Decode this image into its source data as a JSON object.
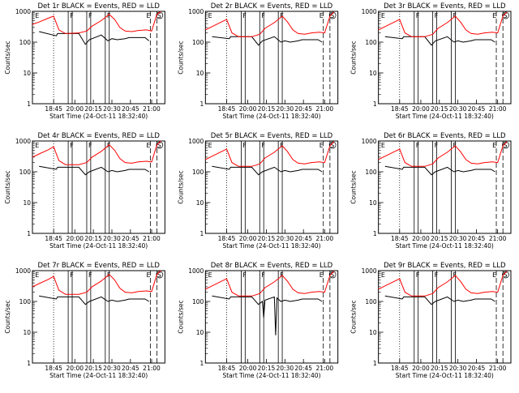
{
  "layout": {
    "rows": 3,
    "cols": 3
  },
  "common": {
    "xlabel": "Start Time (24-Oct-11 18:32:40)",
    "ylabel": "Counts/sec",
    "y_scale": "log",
    "ylim": [
      1,
      1000
    ],
    "y_ticks": [
      1,
      10,
      100,
      1000
    ],
    "x_tick_labels": [
      "18:45",
      "20:00",
      "20:15",
      "20:30",
      "20:45",
      "21:00"
    ],
    "x_tick_fracs": [
      0.16,
      0.32,
      0.46,
      0.6,
      0.74,
      0.9
    ],
    "colors": {
      "events": "#000000",
      "lld": "#ff0000"
    },
    "markers": {
      "E": [
        0.02,
        0.86
      ],
      "F": [
        0.27,
        0.41,
        0.55
      ],
      "S": 0.96
    }
  },
  "chart_data": [
    {
      "title": "Det 1r BLACK = Events, RED = LLD",
      "type": "line",
      "series": [
        {
          "name": "Events",
          "x": [
            0.05,
            0.18,
            0.19,
            0.22,
            0.35,
            0.4,
            0.43,
            0.52,
            0.57,
            0.6,
            0.64,
            0.7,
            0.73,
            0.85,
            0.88
          ],
          "values": [
            220,
            160,
            190,
            190,
            190,
            85,
            120,
            170,
            110,
            130,
            120,
            130,
            140,
            140,
            110
          ]
        },
        {
          "name": "LLD",
          "x": [
            0,
            0.05,
            0.12,
            0.16,
            0.2,
            0.25,
            0.35,
            0.41,
            0.45,
            0.52,
            0.58,
            0.62,
            0.66,
            0.7,
            0.75,
            0.8,
            0.86,
            0.9,
            0.94,
            0.97
          ],
          "values": [
            380,
            450,
            600,
            700,
            250,
            190,
            200,
            230,
            330,
            500,
            800,
            550,
            300,
            230,
            220,
            240,
            250,
            230,
            800,
            1000
          ]
        }
      ]
    },
    {
      "title": "Det 2r BLACK = Events, RED = LLD",
      "type": "line",
      "series": [
        {
          "name": "Events",
          "x": [
            0.05,
            0.18,
            0.19,
            0.22,
            0.35,
            0.4,
            0.43,
            0.52,
            0.57,
            0.6,
            0.64,
            0.7,
            0.73,
            0.85,
            0.88
          ],
          "values": [
            150,
            130,
            150,
            150,
            150,
            80,
            110,
            150,
            100,
            110,
            100,
            110,
            120,
            120,
            100
          ]
        },
        {
          "name": "LLD",
          "x": [
            0,
            0.05,
            0.12,
            0.16,
            0.2,
            0.25,
            0.35,
            0.41,
            0.45,
            0.52,
            0.58,
            0.62,
            0.66,
            0.7,
            0.75,
            0.8,
            0.86,
            0.9,
            0.94,
            0.97
          ],
          "values": [
            250,
            320,
            450,
            550,
            200,
            150,
            150,
            180,
            280,
            430,
            700,
            450,
            250,
            190,
            180,
            200,
            210,
            200,
            700,
            950
          ]
        }
      ]
    },
    {
      "title": "Det 3r BLACK = Events, RED = LLD",
      "type": "line",
      "series": [
        {
          "name": "Events",
          "x": [
            0.05,
            0.18,
            0.19,
            0.22,
            0.35,
            0.4,
            0.43,
            0.52,
            0.57,
            0.6,
            0.64,
            0.7,
            0.73,
            0.85,
            0.88
          ],
          "values": [
            150,
            130,
            150,
            150,
            150,
            80,
            110,
            150,
            100,
            110,
            100,
            110,
            120,
            120,
            100
          ]
        },
        {
          "name": "LLD",
          "x": [
            0,
            0.05,
            0.12,
            0.16,
            0.2,
            0.25,
            0.35,
            0.41,
            0.45,
            0.52,
            0.58,
            0.62,
            0.66,
            0.7,
            0.75,
            0.8,
            0.86,
            0.9,
            0.94,
            0.97
          ],
          "values": [
            250,
            320,
            450,
            550,
            200,
            150,
            150,
            180,
            280,
            430,
            700,
            450,
            250,
            190,
            180,
            200,
            210,
            200,
            700,
            950
          ]
        }
      ]
    },
    {
      "title": "Det 4r BLACK = Events, RED = LLD",
      "type": "line",
      "series": [
        {
          "name": "Events",
          "x": [
            0.05,
            0.18,
            0.19,
            0.22,
            0.35,
            0.4,
            0.43,
            0.52,
            0.57,
            0.6,
            0.64,
            0.7,
            0.73,
            0.85,
            0.88
          ],
          "values": [
            150,
            120,
            140,
            140,
            140,
            80,
            100,
            140,
            100,
            110,
            100,
            110,
            120,
            120,
            100
          ]
        },
        {
          "name": "LLD",
          "x": [
            0,
            0.05,
            0.12,
            0.16,
            0.2,
            0.25,
            0.35,
            0.41,
            0.45,
            0.52,
            0.58,
            0.62,
            0.66,
            0.7,
            0.75,
            0.8,
            0.86,
            0.9,
            0.94,
            0.97
          ],
          "values": [
            300,
            380,
            520,
            650,
            230,
            170,
            170,
            200,
            300,
            460,
            750,
            500,
            270,
            200,
            190,
            210,
            220,
            210,
            750,
            1000
          ]
        }
      ]
    },
    {
      "title": "Det 5r BLACK = Events, RED = LLD",
      "type": "line",
      "series": [
        {
          "name": "Events",
          "x": [
            0.05,
            0.18,
            0.19,
            0.22,
            0.35,
            0.4,
            0.43,
            0.52,
            0.57,
            0.6,
            0.64,
            0.7,
            0.73,
            0.85,
            0.88
          ],
          "values": [
            150,
            120,
            140,
            140,
            140,
            80,
            100,
            140,
            100,
            110,
            100,
            110,
            120,
            120,
            100
          ]
        },
        {
          "name": "LLD",
          "x": [
            0,
            0.05,
            0.12,
            0.16,
            0.2,
            0.25,
            0.35,
            0.41,
            0.45,
            0.52,
            0.58,
            0.62,
            0.66,
            0.7,
            0.75,
            0.8,
            0.86,
            0.9,
            0.94,
            0.97
          ],
          "values": [
            250,
            320,
            450,
            550,
            200,
            150,
            150,
            180,
            280,
            430,
            700,
            450,
            250,
            190,
            180,
            200,
            210,
            200,
            700,
            950
          ]
        }
      ]
    },
    {
      "title": "Det 6r BLACK = Events, RED = LLD",
      "type": "line",
      "series": [
        {
          "name": "Events",
          "x": [
            0.05,
            0.18,
            0.19,
            0.22,
            0.35,
            0.4,
            0.43,
            0.52,
            0.57,
            0.6,
            0.64,
            0.7,
            0.73,
            0.85,
            0.88
          ],
          "values": [
            150,
            120,
            140,
            140,
            140,
            80,
            100,
            140,
            100,
            110,
            100,
            110,
            120,
            120,
            100
          ]
        },
        {
          "name": "LLD",
          "x": [
            0,
            0.05,
            0.12,
            0.16,
            0.2,
            0.25,
            0.35,
            0.41,
            0.45,
            0.52,
            0.58,
            0.62,
            0.66,
            0.7,
            0.75,
            0.8,
            0.86,
            0.9,
            0.94,
            0.97
          ],
          "values": [
            250,
            320,
            450,
            550,
            200,
            150,
            150,
            180,
            280,
            430,
            700,
            450,
            250,
            190,
            180,
            200,
            210,
            200,
            700,
            950
          ]
        }
      ]
    },
    {
      "title": "Det 7r BLACK = Events, RED = LLD",
      "type": "line",
      "series": [
        {
          "name": "Events",
          "x": [
            0.05,
            0.18,
            0.19,
            0.22,
            0.35,
            0.4,
            0.43,
            0.52,
            0.57,
            0.6,
            0.64,
            0.7,
            0.73,
            0.85,
            0.88
          ],
          "values": [
            150,
            120,
            140,
            140,
            140,
            80,
            100,
            140,
            100,
            110,
            100,
            110,
            120,
            120,
            100
          ]
        },
        {
          "name": "LLD",
          "x": [
            0,
            0.05,
            0.12,
            0.16,
            0.2,
            0.25,
            0.35,
            0.41,
            0.45,
            0.52,
            0.58,
            0.62,
            0.66,
            0.7,
            0.75,
            0.8,
            0.86,
            0.9,
            0.94,
            0.97
          ],
          "values": [
            300,
            380,
            520,
            650,
            230,
            170,
            170,
            200,
            300,
            460,
            750,
            500,
            270,
            200,
            190,
            210,
            220,
            210,
            750,
            1000
          ]
        }
      ]
    },
    {
      "title": "Det 8r BLACK = Events, RED = LLD",
      "type": "line",
      "series": [
        {
          "name": "Events",
          "x": [
            0.05,
            0.18,
            0.19,
            0.22,
            0.35,
            0.4,
            0.43,
            0.44,
            0.45,
            0.52,
            0.53,
            0.54,
            0.57,
            0.6,
            0.64,
            0.7,
            0.73,
            0.85,
            0.88
          ],
          "values": [
            150,
            120,
            140,
            140,
            140,
            80,
            100,
            30,
            110,
            140,
            8,
            130,
            100,
            110,
            100,
            110,
            120,
            120,
            100
          ]
        },
        {
          "name": "LLD",
          "x": [
            0,
            0.05,
            0.12,
            0.16,
            0.2,
            0.25,
            0.35,
            0.41,
            0.45,
            0.52,
            0.58,
            0.62,
            0.66,
            0.7,
            0.75,
            0.8,
            0.86,
            0.9,
            0.94,
            0.97
          ],
          "values": [
            250,
            320,
            450,
            550,
            200,
            150,
            150,
            180,
            280,
            430,
            700,
            450,
            250,
            190,
            180,
            200,
            210,
            200,
            700,
            950
          ]
        }
      ]
    },
    {
      "title": "Det 9r BLACK = Events, RED = LLD",
      "type": "line",
      "series": [
        {
          "name": "Events",
          "x": [
            0.05,
            0.18,
            0.19,
            0.22,
            0.35,
            0.4,
            0.43,
            0.52,
            0.57,
            0.6,
            0.64,
            0.7,
            0.73,
            0.85,
            0.88
          ],
          "values": [
            150,
            120,
            140,
            140,
            140,
            80,
            100,
            140,
            100,
            110,
            100,
            110,
            120,
            120,
            100
          ]
        },
        {
          "name": "LLD",
          "x": [
            0,
            0.05,
            0.12,
            0.16,
            0.2,
            0.25,
            0.35,
            0.41,
            0.45,
            0.52,
            0.58,
            0.62,
            0.66,
            0.7,
            0.75,
            0.8,
            0.86,
            0.9,
            0.94,
            0.97
          ],
          "values": [
            250,
            320,
            450,
            550,
            200,
            150,
            150,
            180,
            280,
            430,
            700,
            450,
            250,
            190,
            180,
            200,
            210,
            200,
            700,
            950
          ]
        }
      ]
    }
  ]
}
